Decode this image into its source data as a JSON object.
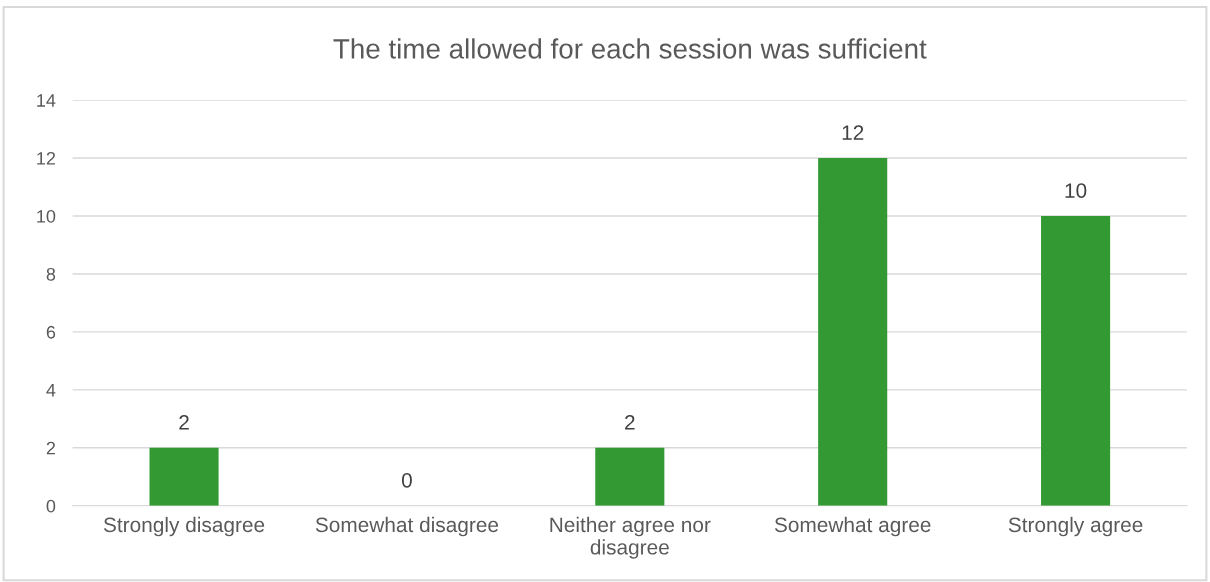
{
  "chart_data": {
    "type": "bar",
    "title": "The time allowed for each session was sufficient",
    "categories": [
      "Strongly disagree",
      "Somewhat disagree",
      "Neither agree nor disagree",
      "Somewhat agree",
      "Strongly agree"
    ],
    "values": [
      2,
      0,
      2,
      12,
      10
    ],
    "color": "#339933",
    "ylim": [
      0,
      14
    ],
    "yticks": [
      0,
      2,
      4,
      6,
      8,
      10,
      12,
      14
    ],
    "grid": "y",
    "data_labels": true,
    "legend": false
  }
}
